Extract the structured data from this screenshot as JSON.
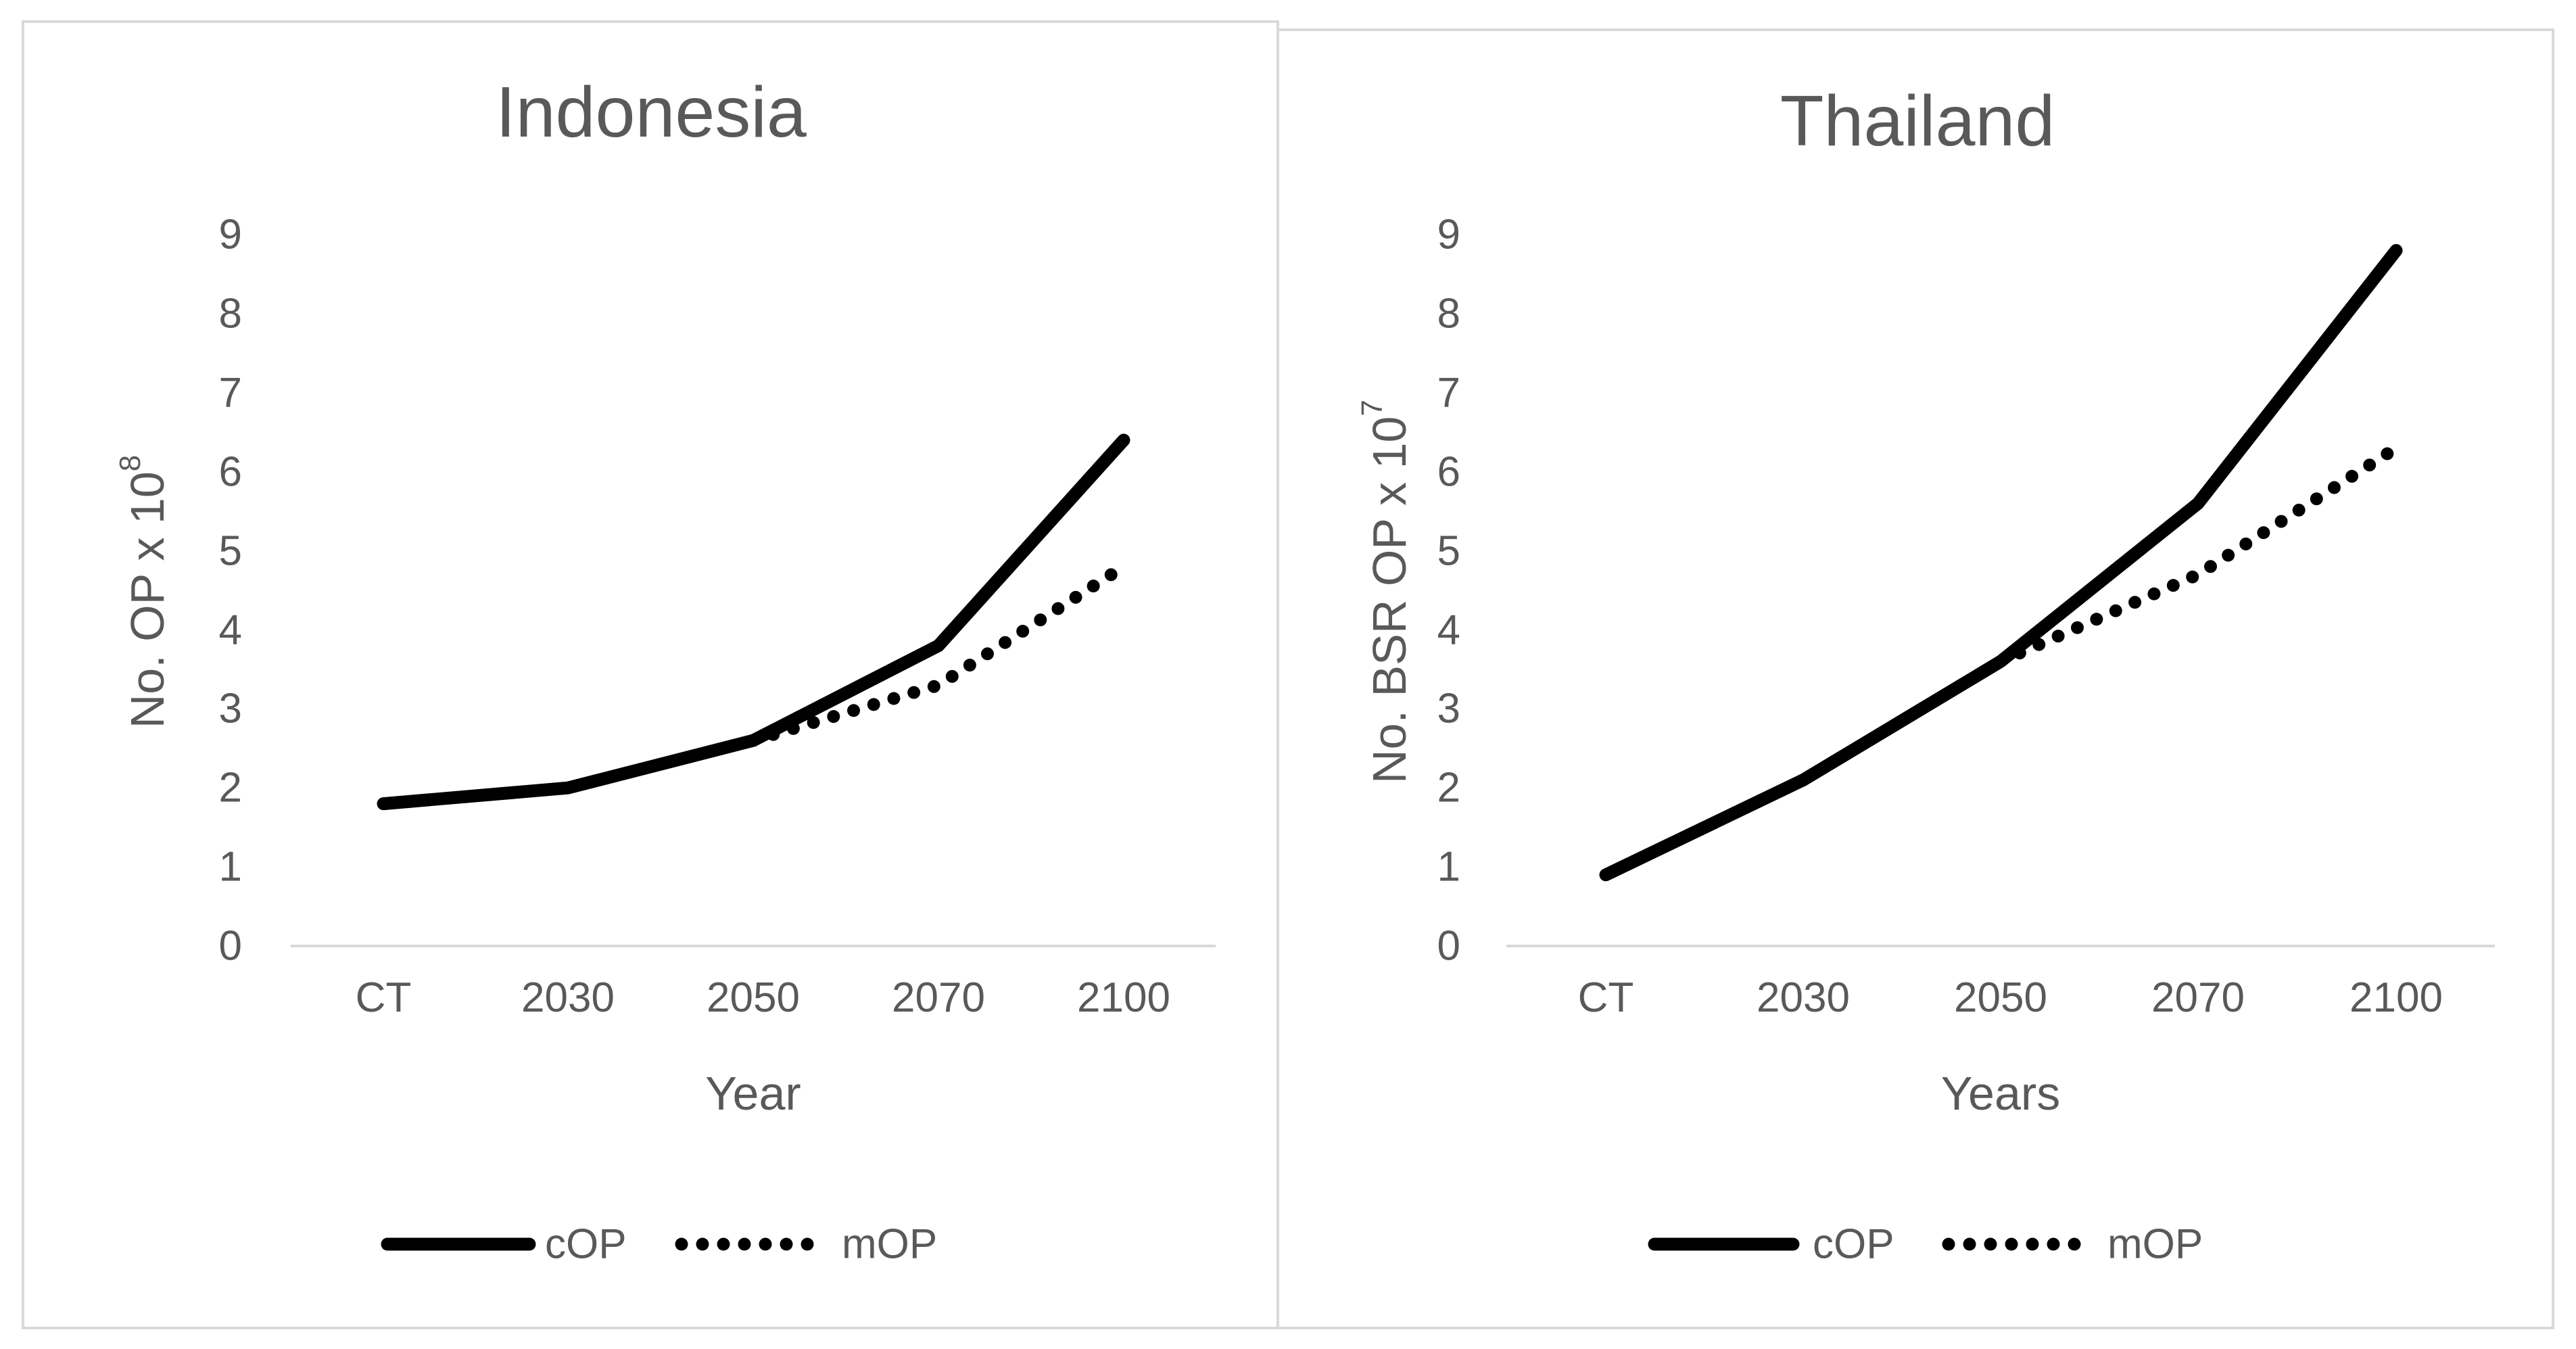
{
  "colors": {
    "background": "#ffffff",
    "panel_border": "#d9d9d9",
    "axis_line": "#d9d9d9",
    "text": "#595959",
    "series": "#000000"
  },
  "chart_data": [
    {
      "type": "line",
      "title": "Indonesia",
      "categories": [
        "CT",
        "2030",
        "2050",
        "2070",
        "2100"
      ],
      "xlabel": "Year",
      "ylabel_main": "No. OP x 10",
      "ylabel_exp": "8",
      "ylim": [
        0,
        9
      ],
      "yticks": [
        "0",
        "1",
        "2",
        "3",
        "4",
        "5",
        "6",
        "7",
        "8",
        "9"
      ],
      "grid": false,
      "legend_position": "bottom",
      "series": [
        {
          "name": "cOP",
          "style": "solid",
          "values": [
            1.8,
            2.0,
            2.6,
            3.8,
            6.4
          ]
        },
        {
          "name": "mOP",
          "style": "dotted",
          "values": [
            null,
            null,
            2.6,
            3.3,
            4.8
          ]
        }
      ]
    },
    {
      "type": "line",
      "title": "Thailand",
      "categories": [
        "CT",
        "2030",
        "2050",
        "2070",
        "2100"
      ],
      "xlabel": "Years",
      "ylabel_main": "No. BSR OP x 10",
      "ylabel_exp": "7",
      "ylim": [
        0,
        9
      ],
      "yticks": [
        "0",
        "1",
        "2",
        "3",
        "4",
        "5",
        "6",
        "7",
        "8",
        "9"
      ],
      "grid": false,
      "legend_position": "bottom",
      "series": [
        {
          "name": "cOP",
          "style": "solid",
          "values": [
            0.9,
            2.1,
            3.6,
            5.6,
            8.8
          ]
        },
        {
          "name": "mOP",
          "style": "dotted",
          "values": [
            null,
            null,
            3.6,
            4.7,
            6.3
          ]
        }
      ]
    }
  ]
}
